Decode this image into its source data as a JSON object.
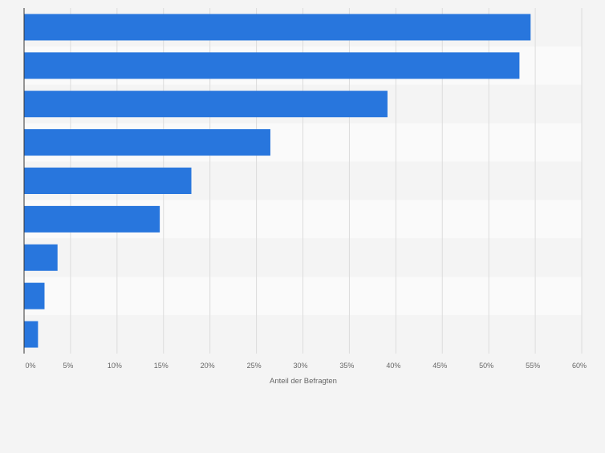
{
  "chart_data": {
    "type": "bar",
    "orientation": "horizontal",
    "categories": [
      "",
      "",
      "",
      "",
      "",
      "",
      "",
      "",
      ""
    ],
    "values": [
      54.5,
      53.3,
      39.1,
      26.5,
      18.0,
      14.6,
      3.6,
      2.2,
      1.5
    ],
    "xlabel": "Anteil der Befragten",
    "xlim": [
      0,
      60
    ],
    "xticks": [
      "0%",
      "5%",
      "10%",
      "15%",
      "20%",
      "25%",
      "30%",
      "35%",
      "40%",
      "45%",
      "50%",
      "55%",
      "60%"
    ],
    "grid": true,
    "bar_color": "#2876dd",
    "band_colors": [
      "#f4f4f4",
      "#fafafa"
    ],
    "legend": "none"
  }
}
